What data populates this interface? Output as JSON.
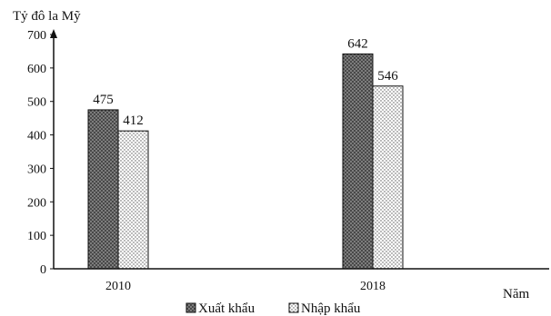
{
  "chart_data": {
    "type": "bar",
    "title": "",
    "ylabel": "Tỷ đô la Mỹ",
    "xlabel": "Năm",
    "categories": [
      "2010",
      "2018"
    ],
    "ylim": [
      0,
      700
    ],
    "yticks": [
      0,
      100,
      200,
      300,
      400,
      500,
      600,
      700
    ],
    "grid": false,
    "legend_position": "bottom",
    "series": [
      {
        "name": "Xuất khẩu",
        "values": [
          475,
          642
        ],
        "pattern": "crosshatch-dark"
      },
      {
        "name": "Nhập khẩu",
        "values": [
          412,
          546
        ],
        "pattern": "dotted-light"
      }
    ]
  }
}
